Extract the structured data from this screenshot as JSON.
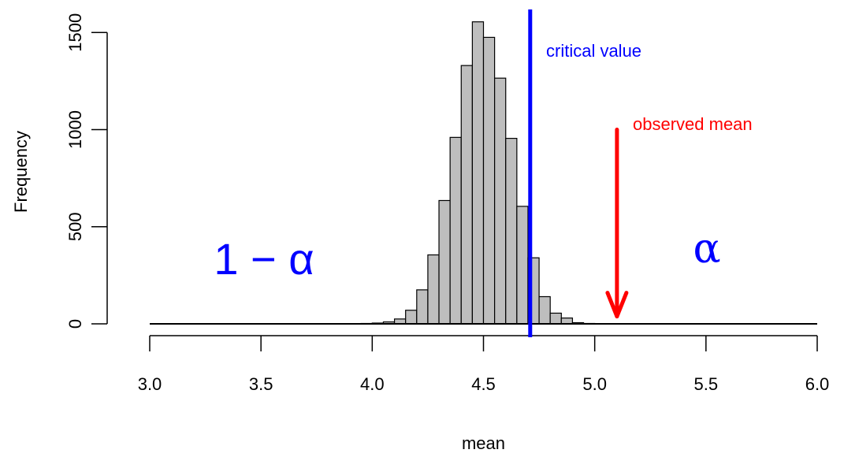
{
  "chart_data": {
    "type": "bar",
    "subtype": "histogram",
    "xlabel": "mean",
    "ylabel": "Frequency",
    "xlim": [
      3.0,
      6.0
    ],
    "ylim": [
      0,
      1600
    ],
    "x_ticks": [
      "3.0",
      "3.5",
      "4.0",
      "4.5",
      "5.0",
      "5.5",
      "6.0"
    ],
    "y_ticks": [
      "0",
      "500",
      "1000",
      "1500"
    ],
    "bin_width": 0.05,
    "bins": [
      {
        "start": 3.9,
        "end": 3.95,
        "count": 1
      },
      {
        "start": 3.95,
        "end": 4.0,
        "count": 2
      },
      {
        "start": 4.0,
        "end": 4.05,
        "count": 4
      },
      {
        "start": 4.05,
        "end": 4.1,
        "count": 10
      },
      {
        "start": 4.1,
        "end": 4.15,
        "count": 25
      },
      {
        "start": 4.15,
        "end": 4.2,
        "count": 70
      },
      {
        "start": 4.2,
        "end": 4.25,
        "count": 175
      },
      {
        "start": 4.25,
        "end": 4.3,
        "count": 355
      },
      {
        "start": 4.3,
        "end": 4.35,
        "count": 635
      },
      {
        "start": 4.35,
        "end": 4.4,
        "count": 960
      },
      {
        "start": 4.4,
        "end": 4.45,
        "count": 1330
      },
      {
        "start": 4.45,
        "end": 4.5,
        "count": 1555
      },
      {
        "start": 4.5,
        "end": 4.55,
        "count": 1475
      },
      {
        "start": 4.55,
        "end": 4.6,
        "count": 1265
      },
      {
        "start": 4.6,
        "end": 4.65,
        "count": 955
      },
      {
        "start": 4.65,
        "end": 4.7,
        "count": 605
      },
      {
        "start": 4.7,
        "end": 4.75,
        "count": 340
      },
      {
        "start": 4.75,
        "end": 4.8,
        "count": 140
      },
      {
        "start": 4.8,
        "end": 4.85,
        "count": 55
      },
      {
        "start": 4.85,
        "end": 4.9,
        "count": 30
      },
      {
        "start": 4.9,
        "end": 4.95,
        "count": 6
      },
      {
        "start": 4.95,
        "end": 5.0,
        "count": 2
      },
      {
        "start": 5.0,
        "end": 5.05,
        "count": 1
      },
      {
        "start": 5.05,
        "end": 5.1,
        "count": 1
      }
    ],
    "baseline_range": [
      3.0,
      6.0
    ],
    "critical_value": {
      "x": 4.71,
      "label": "critical value",
      "color": "#0000ff"
    },
    "observed_mean": {
      "x": 5.1,
      "arrow_from": 1000,
      "arrow_to": 30,
      "label": "observed mean",
      "color": "#ff0000"
    },
    "region_labels": {
      "left": "1 − α",
      "right": "α",
      "color": "#0000ff"
    },
    "bar_fill": "#bebebe",
    "bar_stroke": "#000000"
  }
}
